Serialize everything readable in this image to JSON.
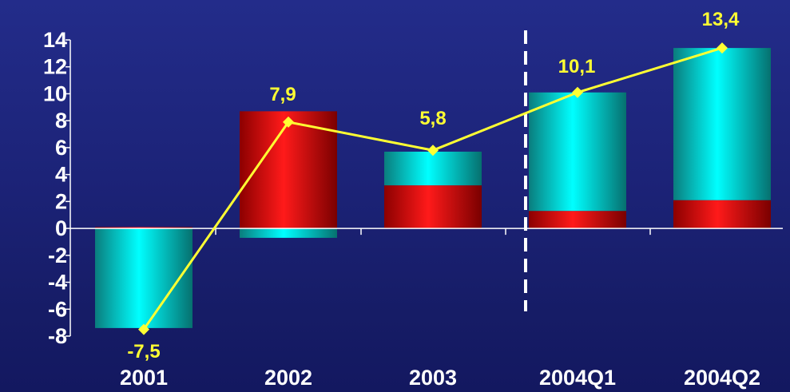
{
  "chart_data": {
    "type": "bar",
    "categories": [
      "2001",
      "2002",
      "2003",
      "2004Q1",
      "2004Q2"
    ],
    "series": [
      {
        "values": [
          0.1,
          8.7,
          3.2,
          1.3,
          2.1
        ]
      },
      {
        "values": [
          -7.4,
          -0.7,
          2.5,
          8.8,
          11.3
        ]
      },
      {
        "values": [
          -7.5,
          7.9,
          5.8,
          10.1,
          13.4
        ]
      }
    ],
    "data_labels": [
      "-7,5",
      "7,9",
      "5,8",
      "10,1",
      "13,4"
    ],
    "y_ticks": [
      "14",
      "12",
      "10",
      "8",
      "6",
      "4",
      "2",
      "0",
      "-2",
      "-4",
      "-6",
      "-8"
    ],
    "ylim": [
      -8,
      14
    ],
    "grid": false,
    "divider_after_category": "2003",
    "colors": {
      "red": "#ff1a1a",
      "cyan": "#00e5e5",
      "line": "#ffff33",
      "axis": "#ffffff"
    }
  }
}
